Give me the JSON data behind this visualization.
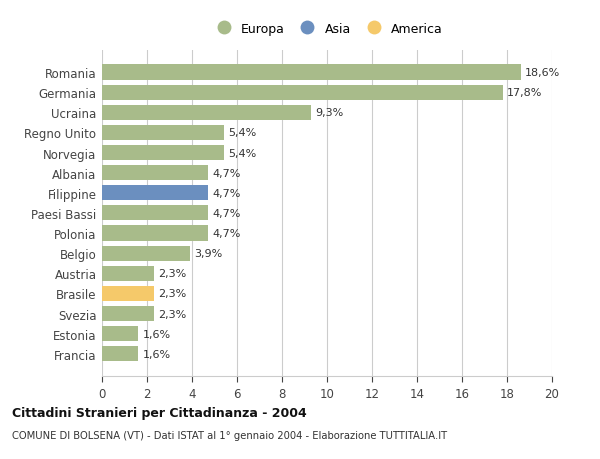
{
  "categories": [
    "Francia",
    "Estonia",
    "Svezia",
    "Brasile",
    "Austria",
    "Belgio",
    "Polonia",
    "Paesi Bassi",
    "Filippine",
    "Albania",
    "Norvegia",
    "Regno Unito",
    "Ucraina",
    "Germania",
    "Romania"
  ],
  "values": [
    1.6,
    1.6,
    2.3,
    2.3,
    2.3,
    3.9,
    4.7,
    4.7,
    4.7,
    4.7,
    5.4,
    5.4,
    9.3,
    17.8,
    18.6
  ],
  "labels": [
    "1,6%",
    "1,6%",
    "2,3%",
    "2,3%",
    "2,3%",
    "3,9%",
    "4,7%",
    "4,7%",
    "4,7%",
    "4,7%",
    "5,4%",
    "5,4%",
    "9,3%",
    "17,8%",
    "18,6%"
  ],
  "colors": [
    "#a8bb8a",
    "#a8bb8a",
    "#a8bb8a",
    "#f5c96a",
    "#a8bb8a",
    "#a8bb8a",
    "#a8bb8a",
    "#a8bb8a",
    "#6b8fbf",
    "#a8bb8a",
    "#a8bb8a",
    "#a8bb8a",
    "#a8bb8a",
    "#a8bb8a",
    "#a8bb8a"
  ],
  "legend_labels": [
    "Europa",
    "Asia",
    "America"
  ],
  "legend_colors": [
    "#a8bb8a",
    "#6b8fbf",
    "#f5c96a"
  ],
  "title1": "Cittadini Stranieri per Cittadinanza - 2004",
  "title2": "COMUNE DI BOLSENA (VT) - Dati ISTAT al 1° gennaio 2004 - Elaborazione TUTTITALIA.IT",
  "xlim": [
    0,
    20
  ],
  "xticks": [
    0,
    2,
    4,
    6,
    8,
    10,
    12,
    14,
    16,
    18,
    20
  ],
  "background_color": "#ffffff",
  "grid_color": "#cccccc",
  "bar_height": 0.75,
  "label_fontsize": 8,
  "ytick_fontsize": 8.5,
  "xtick_fontsize": 8.5
}
